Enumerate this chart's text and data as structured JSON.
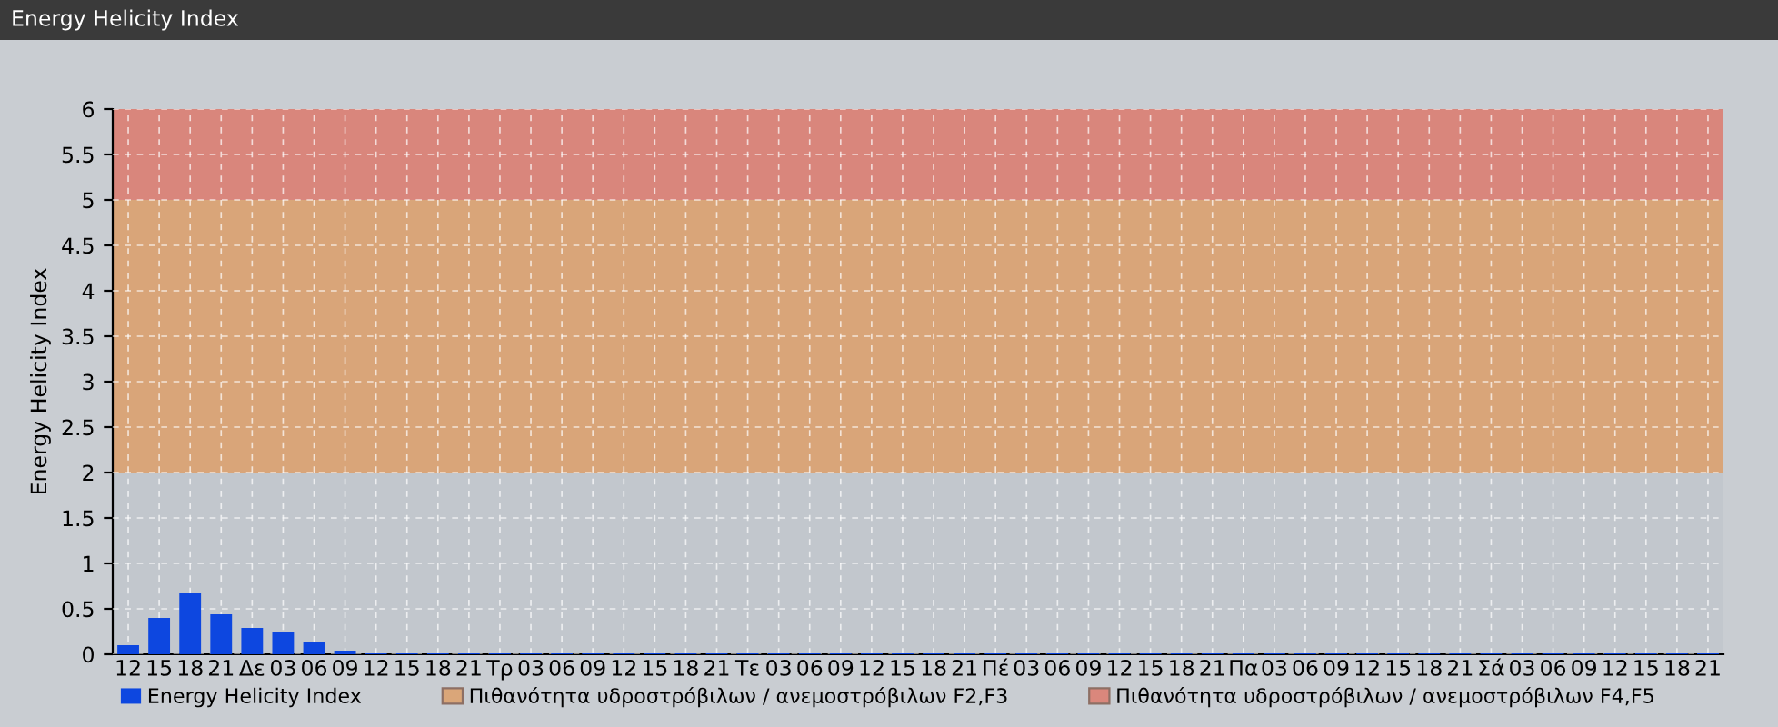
{
  "chart_data": {
    "type": "bar",
    "title": "Energy Helicity Index",
    "ylabel": "Energy Helicity Index",
    "categories": [
      "12",
      "15",
      "18",
      "21",
      "Δε",
      "03",
      "06",
      "09",
      "12",
      "15",
      "18",
      "21",
      "Τρ",
      "03",
      "06",
      "09",
      "12",
      "15",
      "18",
      "21",
      "Τε",
      "03",
      "06",
      "09",
      "12",
      "15",
      "18",
      "21",
      "Πέ",
      "03",
      "06",
      "09",
      "12",
      "15",
      "18",
      "21",
      "Πα",
      "03",
      "06",
      "09",
      "12",
      "15",
      "18",
      "21",
      "Σά",
      "03",
      "06",
      "09",
      "12",
      "15",
      "18",
      "21"
    ],
    "series": [
      {
        "name": "Energy Helicity Index",
        "color": "#0d47e0",
        "values": [
          0.1,
          0.4,
          0.67,
          0.44,
          0.29,
          0.24,
          0.14,
          0.04,
          0.01,
          0.01,
          0.01,
          0.01,
          0.01,
          0.01,
          0.01,
          0.01,
          0.01,
          0.01,
          0.01,
          0.01,
          0.01,
          0.01,
          0.01,
          0.01,
          0.01,
          0.01,
          0.01,
          0.01,
          0.01,
          0.01,
          0.01,
          0.01,
          0.01,
          0.01,
          0.01,
          0.01,
          0.01,
          0.01,
          0.01,
          0.01,
          0.01,
          0.01,
          0.01,
          0.01,
          0.01,
          0.01,
          0.01,
          0.01,
          0.01,
          0.01,
          0.01,
          0.01
        ]
      }
    ],
    "ylim": [
      0,
      6
    ],
    "yticks": [
      0,
      0.5,
      1,
      1.5,
      2,
      2.5,
      3,
      3.5,
      4,
      4.5,
      5,
      5.5,
      6
    ],
    "bands": [
      {
        "axis": "y",
        "from": 2,
        "to": 5,
        "label": "Πιθανότητα υδροστρόβιλων / ανεμοστρόβιλων F2,F3",
        "color": "#e09a5c"
      },
      {
        "axis": "y",
        "from": 5,
        "to": 6,
        "label": "Πιθανότητα υδροστρόβιλων / ανεμοστρόβιλων F4,F5",
        "color": "#e07060"
      }
    ],
    "grid": true,
    "legend": "bottom left"
  }
}
